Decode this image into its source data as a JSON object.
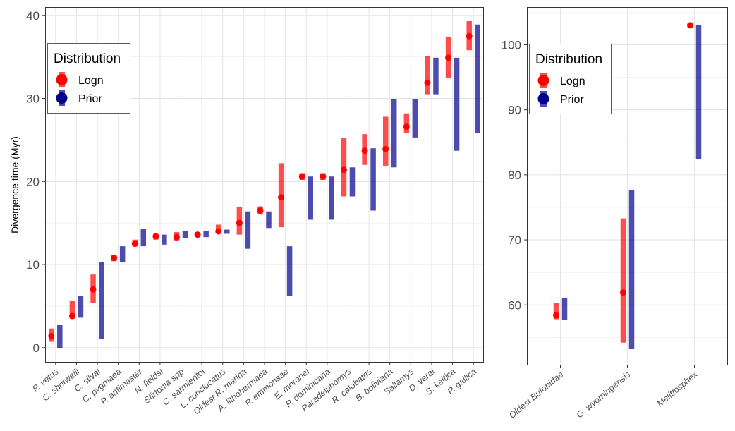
{
  "chart_data": [
    {
      "type": "range-point",
      "ylabel": "Divergence time (Myr)",
      "ylim": [
        -1.8,
        41
      ],
      "yticks": [
        0,
        10,
        20,
        30,
        40
      ],
      "grid": true,
      "legend": {
        "title": "Distribution",
        "placement": "top-left",
        "entries": [
          {
            "label": "Logn",
            "color": "#ff0000"
          },
          {
            "label": "Prior",
            "color": "#00008b"
          }
        ]
      },
      "categories": [
        "P. vetus",
        "C. shotwelli",
        "C. silvai",
        "C. pygmaea",
        "P. antimaster",
        "N. fieldsi",
        "Stirtonia spp",
        "C. sarmientoi",
        "L. conclucatus",
        "Oldest R. marina",
        "A. lithohermaea",
        "P. emmonsae",
        "E. moronei",
        "P. dominicana",
        "Paradelphomys",
        "R. calobates",
        "B. boliviana",
        "Sallamys",
        "D. verai",
        "S. keltica",
        "P. gallica"
      ],
      "series": [
        {
          "name": "Logn",
          "color": "#ff0000",
          "point": [
            1.4,
            3.8,
            7.0,
            10.8,
            12.5,
            13.4,
            13.3,
            13.6,
            14.0,
            15.0,
            16.5,
            18.1,
            20.6,
            20.6,
            21.4,
            23.7,
            23.9,
            26.6,
            31.9,
            34.9,
            37.5
          ],
          "low": [
            0.7,
            3.5,
            5.4,
            10.4,
            12.2,
            13.0,
            12.9,
            13.4,
            13.8,
            13.6,
            16.1,
            14.5,
            20.2,
            20.2,
            18.2,
            22.0,
            21.9,
            25.8,
            30.5,
            32.5,
            35.8
          ],
          "high": [
            2.3,
            5.6,
            8.8,
            11.2,
            13.0,
            13.7,
            13.9,
            13.9,
            14.8,
            16.9,
            17.0,
            22.2,
            21.0,
            21.0,
            25.2,
            25.7,
            27.8,
            28.2,
            35.1,
            37.4,
            39.3
          ]
        },
        {
          "name": "Prior",
          "color": "#00008b",
          "low": [
            -0.1,
            3.6,
            1.0,
            10.3,
            12.2,
            12.4,
            13.2,
            13.3,
            13.7,
            11.9,
            14.4,
            6.2,
            15.4,
            15.4,
            18.2,
            16.5,
            21.7,
            25.3,
            30.5,
            23.7,
            25.8
          ],
          "high": [
            2.7,
            6.2,
            10.3,
            12.2,
            14.3,
            13.6,
            14.0,
            14.0,
            14.2,
            16.4,
            16.4,
            12.2,
            20.6,
            20.6,
            21.7,
            24.0,
            29.9,
            29.9,
            34.9,
            34.9,
            38.9
          ]
        }
      ]
    },
    {
      "type": "range-point",
      "ylabel": "",
      "ylim": [
        50.7,
        105.8
      ],
      "yticks": [
        60,
        70,
        80,
        90,
        100
      ],
      "grid": true,
      "legend": {
        "title": "Distribution",
        "placement": "top-left",
        "entries": [
          {
            "label": "Logn",
            "color": "#ff0000"
          },
          {
            "label": "Prior",
            "color": "#00008b"
          }
        ]
      },
      "categories": [
        "Oldest Bufonidae",
        "G. wyomingensis",
        "Melittosphex"
      ],
      "series": [
        {
          "name": "Logn",
          "color": "#ff0000",
          "point": [
            58.4,
            61.9,
            103.0
          ],
          "low": [
            57.8,
            54.2,
            102.6
          ],
          "high": [
            60.3,
            73.3,
            103.3
          ]
        },
        {
          "name": "Prior",
          "color": "#00008b",
          "low": [
            57.7,
            53.2,
            82.4
          ],
          "high": [
            61.1,
            77.7,
            103.0
          ]
        }
      ]
    }
  ]
}
